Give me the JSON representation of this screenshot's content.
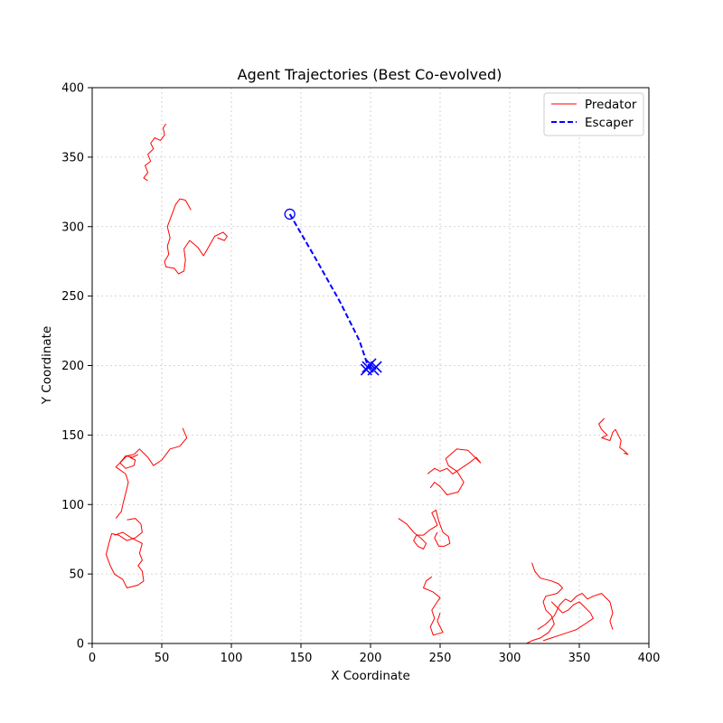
{
  "chart_data": {
    "type": "line",
    "title": "Agent Trajectories (Best Co-evolved)",
    "xlabel": "X Coordinate",
    "ylabel": "Y Coordinate",
    "xlim": [
      0,
      400
    ],
    "ylim": [
      0,
      400
    ],
    "xticks": [
      "0",
      "50",
      "100",
      "150",
      "200",
      "250",
      "300",
      "350",
      "400"
    ],
    "yticks": [
      "0",
      "50",
      "100",
      "150",
      "200",
      "250",
      "300",
      "350",
      "400"
    ],
    "grid": true,
    "legend_position": "top-right",
    "legend": [
      {
        "label": "Predator",
        "style": "solid",
        "color": "#ff0000"
      },
      {
        "label": "Escaper",
        "style": "dashed",
        "color": "#0000ff"
      }
    ],
    "series": [
      {
        "name": "Escaper",
        "color": "#0000ff",
        "style": "dashed",
        "points": [
          [
            142,
            309
          ],
          [
            160,
            278
          ],
          [
            178,
            246
          ],
          [
            192,
            218
          ],
          [
            198,
            200
          ],
          [
            201,
            198
          ],
          [
            199,
            200
          ]
        ],
        "start_marker": "circle",
        "end_markers": [
          [
            198,
            199
          ],
          [
            202,
            197
          ],
          [
            200,
            201
          ],
          [
            204,
            199
          ],
          [
            197,
            197
          ]
        ],
        "end_marker": "x"
      },
      {
        "name": "Predator",
        "color": "#ff0000",
        "style": "solid",
        "paths": [
          [
            [
              53,
              374
            ],
            [
              51,
              371
            ],
            [
              52,
              366
            ],
            [
              49,
              362
            ],
            [
              45,
              364
            ],
            [
              42,
              360
            ],
            [
              44,
              356
            ],
            [
              40,
              352
            ],
            [
              42,
              347
            ],
            [
              38,
              344
            ],
            [
              40,
              339
            ],
            [
              37,
              335
            ],
            [
              40,
              333
            ]
          ],
          [
            [
              71,
              312
            ],
            [
              67,
              319
            ],
            [
              63,
              320
            ],
            [
              60,
              316
            ],
            [
              57,
              308
            ],
            [
              54,
              300
            ],
            [
              56,
              292
            ],
            [
              54,
              286
            ],
            [
              55,
              280
            ],
            [
              52,
              275
            ],
            [
              53,
              271
            ],
            [
              59,
              270
            ],
            [
              62,
              266
            ],
            [
              66,
              268
            ],
            [
              67,
              276
            ],
            [
              66,
              284
            ],
            [
              70,
              290
            ],
            [
              76,
              285
            ],
            [
              80,
              279
            ],
            [
              84,
              286
            ],
            [
              88,
              293
            ],
            [
              94,
              296
            ],
            [
              97,
              293
            ],
            [
              95,
              290
            ],
            [
              90,
              292
            ]
          ],
          [
            [
              65,
              155
            ],
            [
              68,
              148
            ],
            [
              63,
              142
            ],
            [
              56,
              140
            ],
            [
              50,
              132
            ],
            [
              44,
              128
            ],
            [
              40,
              134
            ],
            [
              34,
              140
            ],
            [
              30,
              136
            ],
            [
              25,
              135
            ],
            [
              21,
              131
            ],
            [
              17,
              127
            ],
            [
              24,
              122
            ],
            [
              26,
              116
            ],
            [
              24,
              108
            ],
            [
              22,
              100
            ],
            [
              21,
              95
            ],
            [
              17,
              90
            ]
          ],
          [
            [
              33,
              136
            ],
            [
              29,
              134
            ],
            [
              24,
              135
            ],
            [
              20,
              130
            ],
            [
              24,
              126
            ],
            [
              30,
              128
            ],
            [
              31,
              132
            ],
            [
              27,
              134
            ]
          ],
          [
            [
              25,
              89
            ],
            [
              31,
              90
            ],
            [
              35,
              86
            ],
            [
              36,
              80
            ],
            [
              31,
              76
            ],
            [
              25,
              74
            ],
            [
              19,
              78
            ],
            [
              14,
              79
            ],
            [
              12,
              72
            ],
            [
              10,
              64
            ],
            [
              13,
              56
            ],
            [
              16,
              50
            ],
            [
              22,
              46
            ],
            [
              25,
              40
            ],
            [
              33,
              42
            ],
            [
              37,
              45
            ],
            [
              36,
              52
            ],
            [
              33,
              56
            ],
            [
              36,
              60
            ],
            [
              34,
              65
            ],
            [
              36,
              72
            ],
            [
              28,
              76
            ],
            [
              22,
              80
            ],
            [
              16,
              78
            ]
          ],
          [
            [
              241,
              122
            ],
            [
              246,
              126
            ],
            [
              250,
              124
            ],
            [
              255,
              126
            ],
            [
              259,
              122
            ],
            [
              265,
              126
            ],
            [
              271,
              130
            ],
            [
              276,
              134
            ],
            [
              279,
              130
            ],
            [
              270,
              139
            ],
            [
              262,
              140
            ],
            [
              254,
              133
            ],
            [
              256,
              128
            ],
            [
              262,
              124
            ],
            [
              267,
              116
            ],
            [
              263,
              109
            ],
            [
              255,
              107
            ],
            [
              250,
              113
            ],
            [
              246,
              116
            ],
            [
              243,
              112
            ]
          ],
          [
            [
              220,
              90
            ],
            [
              226,
              86
            ],
            [
              231,
              80
            ],
            [
              236,
              76
            ],
            [
              240,
              72
            ],
            [
              238,
              68
            ],
            [
              234,
              70
            ],
            [
              231,
              74
            ],
            [
              233,
              78
            ],
            [
              238,
              78
            ],
            [
              243,
              82
            ],
            [
              248,
              85
            ],
            [
              246,
              90
            ],
            [
              244,
              94
            ],
            [
              247,
              96
            ],
            [
              249,
              88
            ],
            [
              252,
              80
            ],
            [
              256,
              77
            ],
            [
              257,
              72
            ],
            [
              253,
              70
            ],
            [
              249,
              70
            ],
            [
              246,
              76
            ],
            [
              248,
              80
            ]
          ],
          [
            [
              244,
              48
            ],
            [
              240,
              45
            ],
            [
              238,
              40
            ],
            [
              245,
              37
            ],
            [
              250,
              33
            ],
            [
              248,
              30
            ],
            [
              244,
              24
            ],
            [
              246,
              18
            ],
            [
              243,
              12
            ],
            [
              245,
              6
            ],
            [
              252,
              8
            ],
            [
              250,
              12
            ],
            [
              248,
              16
            ],
            [
              250,
              22
            ]
          ],
          [
            [
              316,
              58
            ],
            [
              318,
              52
            ],
            [
              322,
              47
            ],
            [
              330,
              45
            ],
            [
              335,
              43
            ],
            [
              338,
              40
            ],
            [
              334,
              36
            ],
            [
              326,
              34
            ],
            [
              324,
              30
            ],
            [
              326,
              24
            ],
            [
              330,
              20
            ],
            [
              332,
              14
            ],
            [
              328,
              8
            ],
            [
              322,
              4
            ],
            [
              316,
              2
            ],
            [
              312,
              0
            ]
          ],
          [
            [
              320,
              10
            ],
            [
              326,
              14
            ],
            [
              332,
              20
            ],
            [
              336,
              28
            ],
            [
              340,
              32
            ],
            [
              344,
              30
            ],
            [
              348,
              34
            ],
            [
              352,
              36
            ],
            [
              356,
              32
            ],
            [
              360,
              34
            ],
            [
              366,
              36
            ],
            [
              372,
              30
            ],
            [
              374,
              22
            ],
            [
              372,
              16
            ],
            [
              374,
              10
            ]
          ],
          [
            [
              330,
              30
            ],
            [
              334,
              26
            ],
            [
              338,
              22
            ],
            [
              342,
              24
            ],
            [
              346,
              28
            ],
            [
              350,
              30
            ],
            [
              354,
              26
            ],
            [
              358,
              22
            ],
            [
              360,
              18
            ],
            [
              354,
              14
            ],
            [
              348,
              10
            ],
            [
              342,
              8
            ],
            [
              336,
              6
            ],
            [
              330,
              4
            ],
            [
              324,
              2
            ]
          ],
          [
            [
              368,
              162
            ],
            [
              364,
              158
            ],
            [
              366,
              154
            ],
            [
              370,
              150
            ],
            [
              366,
              148
            ],
            [
              372,
              146
            ],
            [
              374,
              152
            ],
            [
              376,
              154
            ],
            [
              378,
              150
            ],
            [
              380,
              146
            ],
            [
              379,
              141
            ],
            [
              383,
              138
            ],
            [
              385,
              136
            ],
            [
              382,
              137
            ]
          ]
        ]
      }
    ]
  }
}
